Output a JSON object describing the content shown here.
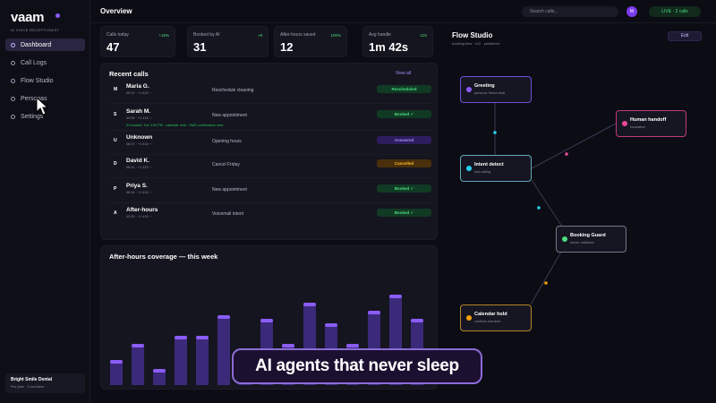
{
  "brand": {
    "name": "vaam",
    "subtitle": "AI VOICE RECEPTIONIST"
  },
  "nav": [
    {
      "label": "Dashboard",
      "active": true
    },
    {
      "label": "Call Logs",
      "active": false
    },
    {
      "label": "Flow Studio",
      "active": false
    },
    {
      "label": "Personas",
      "active": false
    },
    {
      "label": "Settings",
      "active": false
    }
  ],
  "clinic": {
    "name": "Bright Smile Dental",
    "plan": "Pro plan · 3 numbers"
  },
  "header": {
    "title": "Overview",
    "search_placeholder": "Search calls...",
    "avatar": "M",
    "live_status": "LIVE · 2 calls"
  },
  "kpis": [
    {
      "label": "Calls today",
      "value": "47",
      "delta": "+18%"
    },
    {
      "label": "Booked by AI",
      "value": "31",
      "delta": "+9"
    },
    {
      "label": "After-hours saved",
      "value": "12",
      "delta": "100%"
    },
    {
      "label": "Avg handle",
      "value": "1m 42s",
      "delta": "-12s"
    }
  ],
  "recent_calls": {
    "title": "Recent calls",
    "view_all": "View all",
    "rows": [
      {
        "initial": "M",
        "name": "Maria G.",
        "meta": "09:12 · +1 415 ···",
        "intent": "Reschedule cleaning",
        "status": "Rescheduled",
        "status_kind": "green"
      },
      {
        "initial": "S",
        "name": "Sarah M.",
        "meta": "09:05 · +1 415 ···",
        "intent": "New appointment",
        "status": "Booked ✓",
        "status_kind": "green",
        "extra": "AI booked: Tue 3:30 PM · calendar hold · SMS confirmation sent"
      },
      {
        "initial": "U",
        "name": "Unknown",
        "meta": "08:47 · +1 415 ···",
        "intent": "Opening hours",
        "status": "Answered",
        "status_kind": "purple"
      },
      {
        "initial": "D",
        "name": "David K.",
        "meta": "08:31 · +1 415 ···",
        "intent": "Cancel Friday",
        "status": "Cancelled",
        "status_kind": "orange"
      },
      {
        "initial": "P",
        "name": "Priya S.",
        "meta": "08:16 · +1 415 ···",
        "intent": "New appointment",
        "status": "Booked ✓",
        "status_kind": "green"
      },
      {
        "initial": "A",
        "name": "After-hours",
        "meta": "03:39 · +1 415 ···",
        "intent": "Voicemail intent",
        "status": "Booked ✓",
        "status_kind": "green"
      }
    ]
  },
  "coverage": {
    "title": "After-hours coverage — this week"
  },
  "chart_data": {
    "type": "bar",
    "title": "After-hours coverage — this week",
    "values": [
      6,
      10,
      4,
      12,
      12,
      17,
      8,
      16,
      10,
      20,
      15,
      10,
      18,
      22,
      16
    ],
    "ylim": [
      0,
      25
    ]
  },
  "flow": {
    "title": "Flow Studio",
    "subtitle": "booking flow · v12 · published",
    "edit": "Edit",
    "nodes": [
      {
        "name": "Greeting",
        "desc": "persona: friend desk",
        "color": "#8b5cf6"
      },
      {
        "name": "Human handoff",
        "desc": "escalation",
        "color": "#ec4899"
      },
      {
        "name": "Intent detect",
        "desc": "tool-calling",
        "color": "#22d3ee"
      },
      {
        "name": "Booking Guard",
        "desc": "server validates",
        "color": "#4ade80"
      },
      {
        "name": "Calendar hold",
        "desc": "conflicts checked",
        "color": "#f59e0b"
      }
    ]
  },
  "caption": "AI agents that never sleep"
}
